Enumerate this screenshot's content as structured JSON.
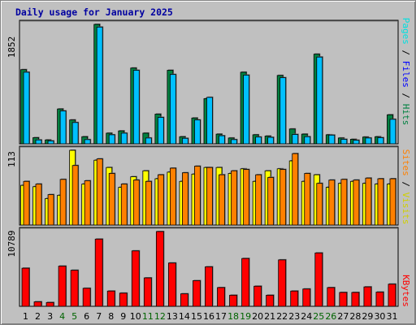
{
  "title": "Daily usage for January 2025",
  "colors": {
    "hits": "#008040",
    "files": "#00c0ff",
    "pages": "#00e0e0",
    "visits": "#ffff00",
    "sites": "#ff8000",
    "kbytes": "#ff0000",
    "panel_bg": "#c0c0c0",
    "weekend_label": "#006400",
    "weekday_label": "#000000"
  },
  "chart_data": [
    {
      "type": "bar",
      "categories": [
        "1",
        "2",
        "3",
        "4",
        "5",
        "6",
        "7",
        "8",
        "9",
        "10",
        "11",
        "12",
        "13",
        "14",
        "15",
        "16",
        "17",
        "18",
        "19",
        "20",
        "21",
        "22",
        "23",
        "24",
        "25",
        "26",
        "27",
        "28",
        "29",
        "30",
        "31"
      ],
      "weekend_days": [
        "4",
        "5",
        "11",
        "12",
        "18",
        "19",
        "25",
        "26"
      ],
      "series": [
        {
          "name": "Hits",
          "values": [
            1150,
            95,
            60,
            540,
            370,
            110,
            1852,
            165,
            200,
            1175,
            165,
            460,
            1140,
            110,
            400,
            700,
            150,
            90,
            1110,
            140,
            120,
            1060,
            230,
            150,
            1390,
            140,
            90,
            70,
            105,
            110,
            450
          ]
        },
        {
          "name": "Files",
          "values": [
            1110,
            60,
            45,
            510,
            330,
            65,
            1810,
            140,
            165,
            1140,
            90,
            410,
            1075,
            85,
            370,
            720,
            125,
            65,
            1065,
            105,
            100,
            1025,
            145,
            110,
            1345,
            135,
            70,
            55,
            90,
            95,
            380
          ]
        }
      ],
      "legend": [
        "Hits",
        "Files",
        "Pages"
      ],
      "ylim": [
        0,
        1852
      ],
      "yticks": [
        1852
      ]
    },
    {
      "type": "bar",
      "categories": [
        "1",
        "2",
        "3",
        "4",
        "5",
        "6",
        "7",
        "8",
        "9",
        "10",
        "11",
        "12",
        "13",
        "14",
        "15",
        "16",
        "17",
        "18",
        "19",
        "20",
        "21",
        "22",
        "23",
        "24",
        "25",
        "26",
        "27",
        "28",
        "29",
        "30",
        "31"
      ],
      "series": [
        {
          "name": "Visits",
          "values": [
            60,
            58,
            40,
            45,
            113,
            62,
            98,
            87,
            57,
            73,
            82,
            70,
            80,
            66,
            77,
            87,
            87,
            78,
            85,
            66,
            82,
            85,
            97,
            66,
            76,
            57,
            63,
            66,
            63,
            62,
            62
          ]
        },
        {
          "name": "Sites",
          "values": [
            66,
            62,
            46,
            69,
            90,
            67,
            100,
            78,
            62,
            68,
            66,
            76,
            86,
            79,
            89,
            87,
            76,
            82,
            84,
            76,
            72,
            84,
            108,
            78,
            63,
            68,
            69,
            68,
            71,
            70,
            70
          ]
        }
      ],
      "legend": [
        "Sites",
        "Visits"
      ],
      "ylim": [
        0,
        113
      ],
      "yticks": [
        113
      ]
    },
    {
      "type": "bar",
      "categories": [
        "1",
        "2",
        "3",
        "4",
        "5",
        "6",
        "7",
        "8",
        "9",
        "10",
        "11",
        "12",
        "13",
        "14",
        "15",
        "16",
        "17",
        "18",
        "19",
        "20",
        "21",
        "22",
        "23",
        "24",
        "25",
        "26",
        "27",
        "28",
        "29",
        "30",
        "31"
      ],
      "series": [
        {
          "name": "KBytes",
          "values": [
            5500,
            650,
            550,
            5800,
            5200,
            2600,
            9700,
            2200,
            1900,
            8000,
            4100,
            10789,
            6250,
            1800,
            3700,
            5700,
            2700,
            1600,
            6900,
            2900,
            1600,
            6700,
            2200,
            2500,
            7700,
            2700,
            2000,
            2000,
            2800,
            2050,
            3200
          ]
        }
      ],
      "legend": [
        "KBytes"
      ],
      "ylim": [
        0,
        10789
      ],
      "yticks": [
        10789
      ]
    }
  ]
}
